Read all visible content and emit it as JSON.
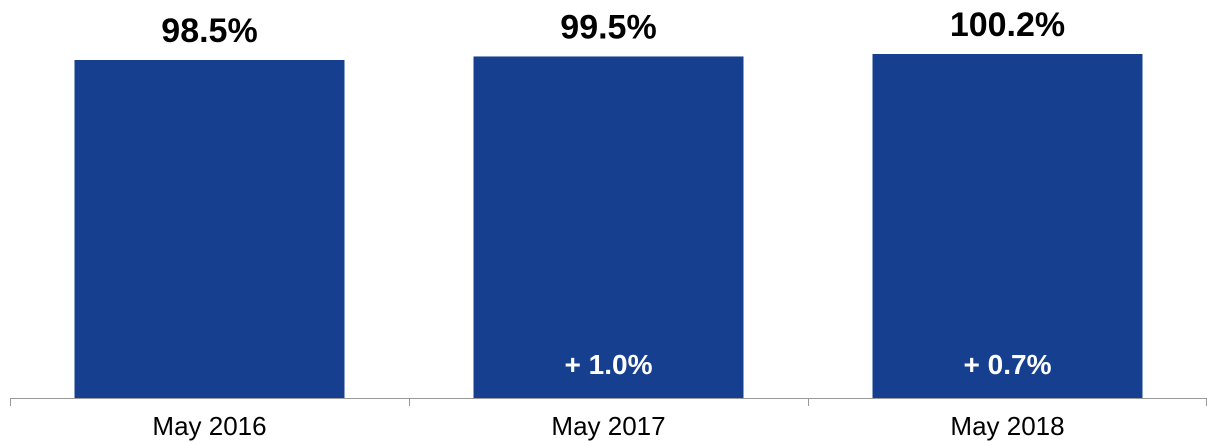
{
  "chart_data": {
    "type": "bar",
    "categories": [
      "May 2016",
      "May 2017",
      "May 2018"
    ],
    "values": [
      98.5,
      99.5,
      100.2
    ],
    "value_labels": [
      "98.5%",
      "99.5%",
      "100.2%"
    ],
    "change_labels": [
      "",
      "+ 1.0%",
      "+ 0.7%"
    ],
    "title": "",
    "xlabel": "",
    "ylabel": "",
    "grid": false,
    "colors": {
      "bar": "#16408f",
      "axis": "#999999",
      "value_text": "#000000",
      "change_text": "#ffffff"
    }
  }
}
